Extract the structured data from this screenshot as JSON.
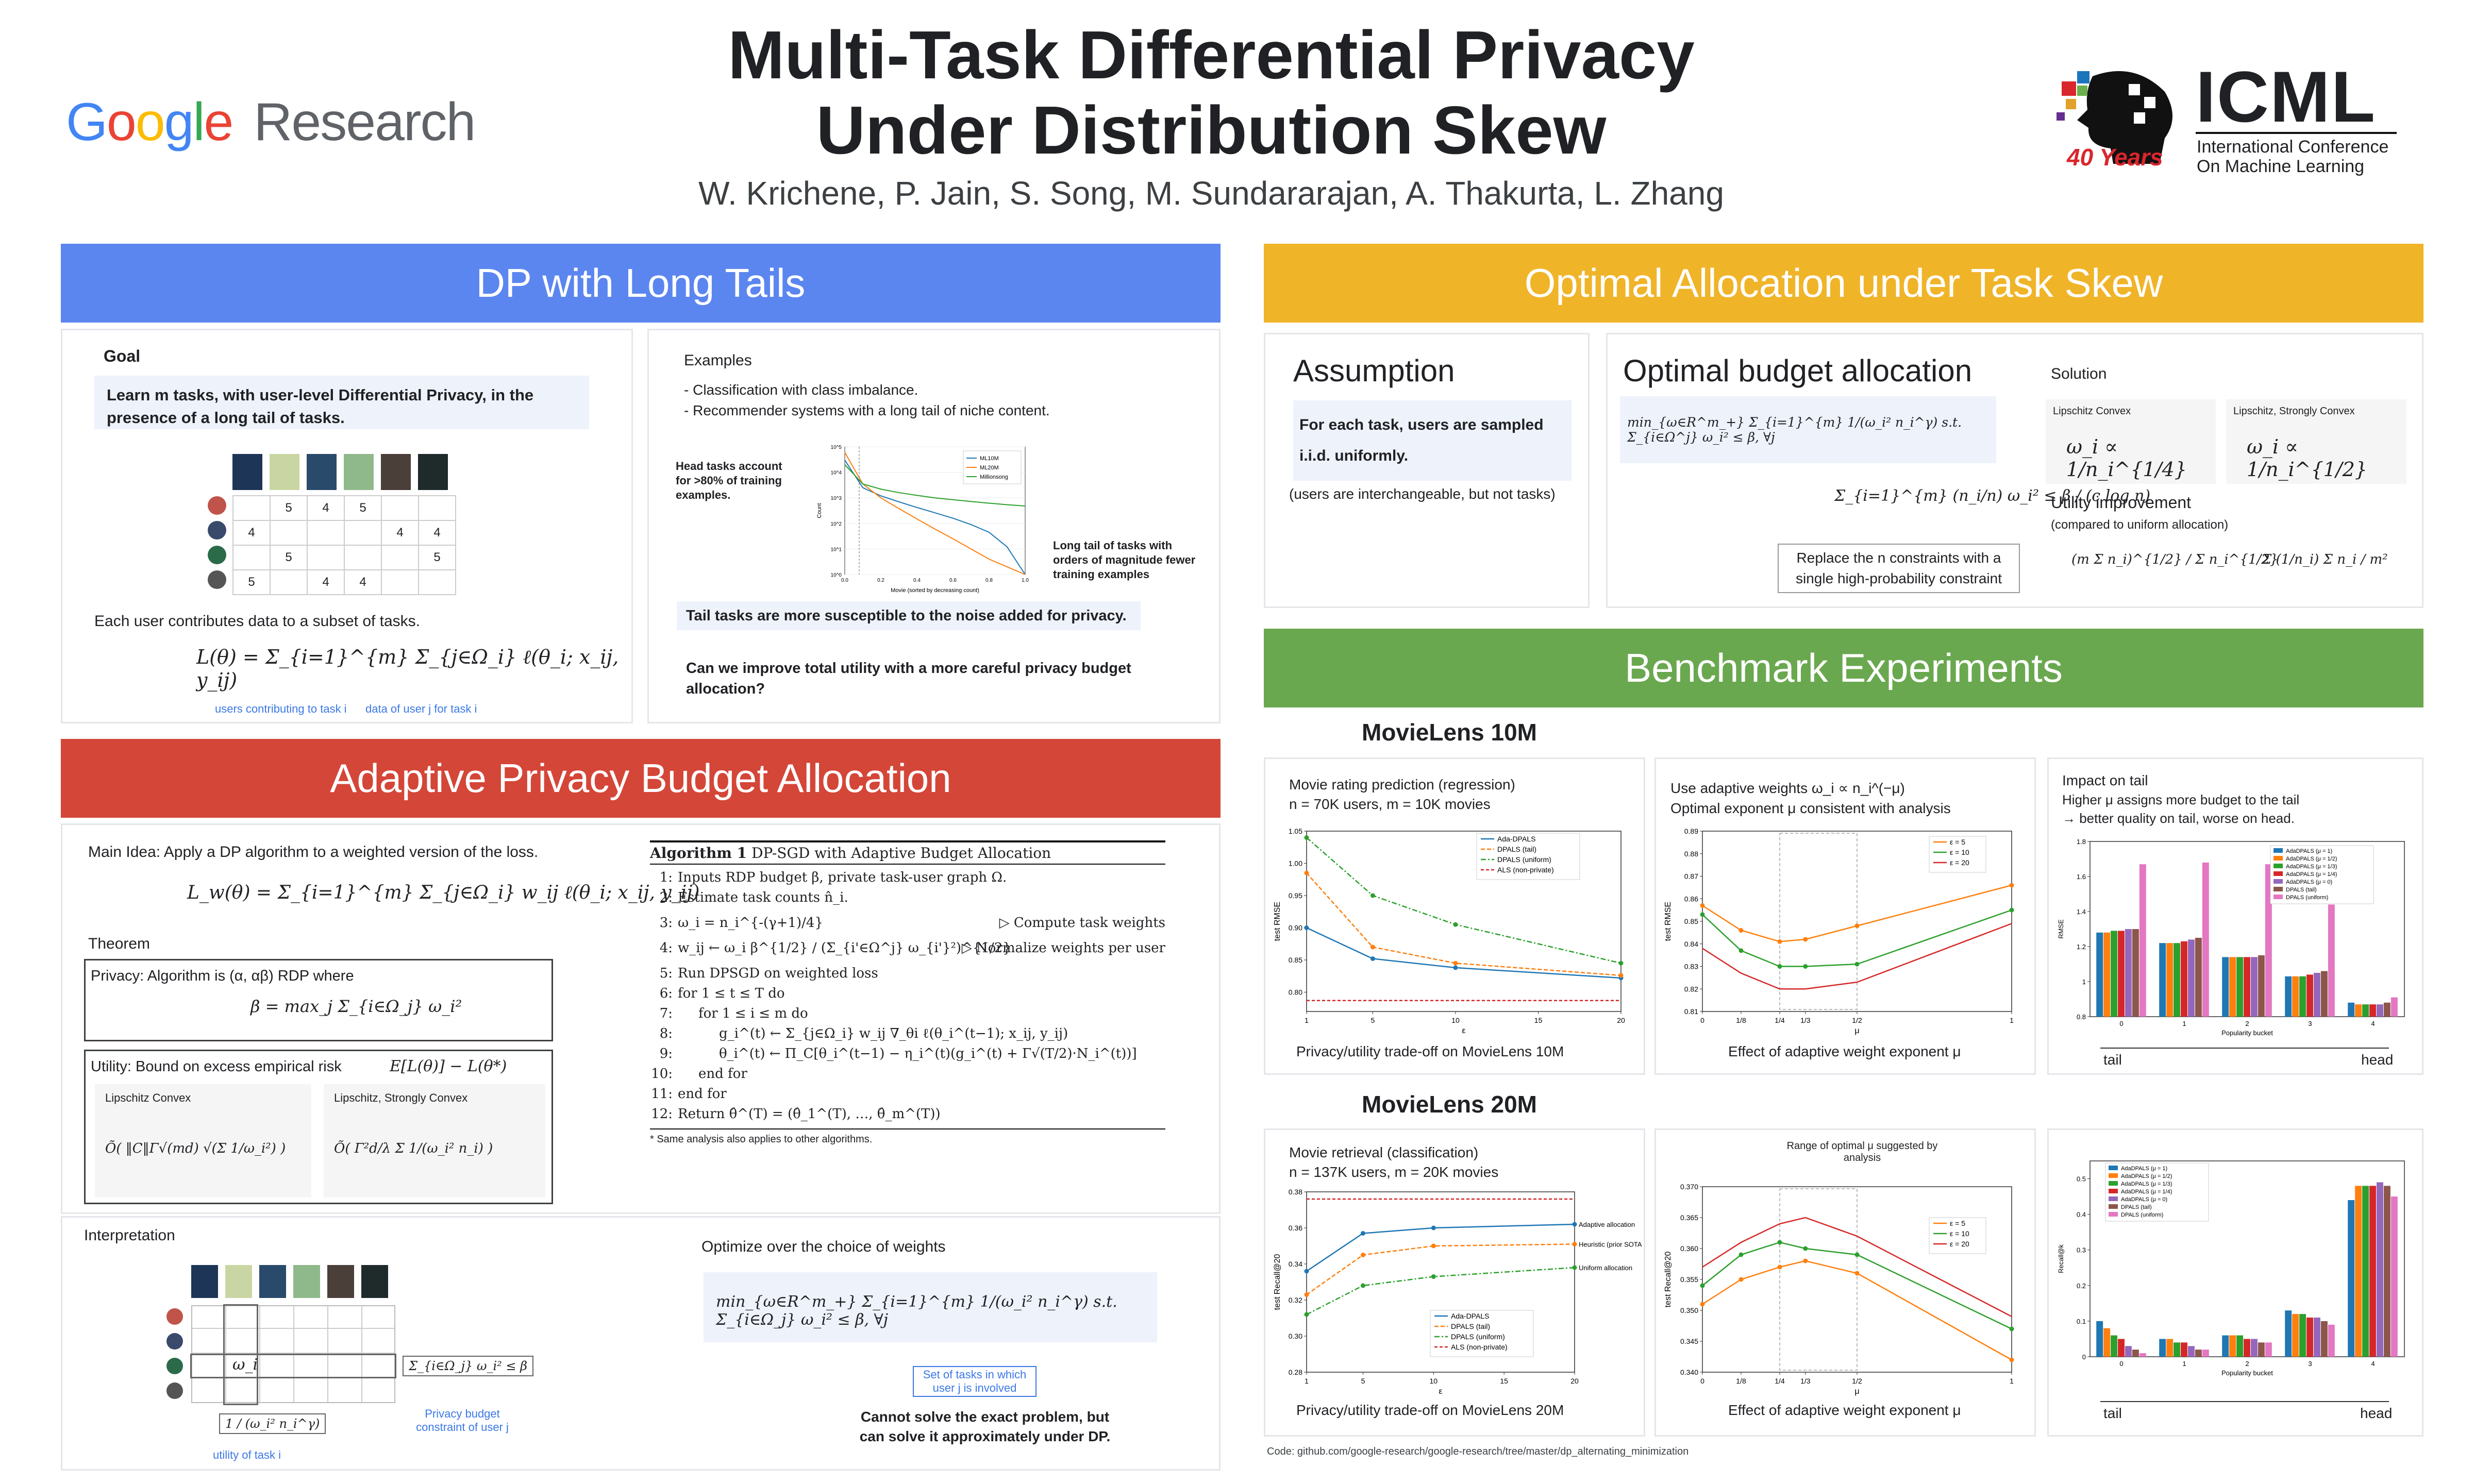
{
  "header": {
    "title_line1": "Multi-Task Differential Privacy",
    "title_line2": "Under Distribution Skew",
    "authors": "W. Krichene, P. Jain, S. Song, M. Sundararajan, A. Thakurta, L. Zhang",
    "left_logo": {
      "google": "Google",
      "research": "Research"
    },
    "right_logo": {
      "icml": "ICML",
      "line1": "International Conference",
      "line2": "On Machine Learning",
      "years": "40 Years"
    }
  },
  "colors": {
    "blue": "#5b86f0",
    "red": "#d44638",
    "yellow": "#f0b429",
    "green": "#6aa84f",
    "accent": "#3b78e7"
  },
  "sections": {
    "dp_long_tails": "DP with Long Tails",
    "adaptive": "Adaptive Privacy Budget Allocation",
    "optimal": "Optimal Allocation under Task Skew",
    "benchmark": "Benchmark Experiments"
  },
  "goal": {
    "heading": "Goal",
    "text_line1": "Learn m tasks, with user-level Differential Privacy, in the",
    "text_line2": "presence of a long tail of tasks.",
    "each_user": "Each user contributes data to a subset of tasks.",
    "formula": "L(θ) = Σ_{i=1}^{m} Σ_{j∈Ω_i} ℓ(θ_i; x_ij, y_ij)",
    "note_users": "users contributing to task i",
    "note_data": "data of user j for task i"
  },
  "matrix": {
    "rows": [
      [
        "",
        "5",
        "4",
        "5",
        "",
        ""
      ],
      [
        "4",
        "",
        "",
        "",
        "4",
        "4"
      ],
      [
        "",
        "5",
        "",
        "",
        "",
        "5"
      ],
      [
        "5",
        "",
        "4",
        "4",
        "",
        ""
      ]
    ]
  },
  "examples": {
    "heading": "Examples",
    "item1": "-  Classification with class imbalance.",
    "item2": "-  Recommender systems with a long tail of niche content.",
    "head_note": "Head tasks account for >80% of training examples.",
    "tail_note": "Long tail of tasks with orders of magnitude fewer training examples",
    "box_text": "Tail tasks are more susceptible to the noise added for privacy.",
    "question": "Can we improve total utility with a more careful privacy budget allocation?",
    "chart_xlabel": "Movie (sorted by decreasing count)",
    "chart_ylabel": "Count",
    "legend": [
      "ML10M",
      "ML20M",
      "Millionsong"
    ]
  },
  "adaptive": {
    "main_idea": "Main Idea: Apply a DP algorithm to a weighted version of the loss.",
    "weighted_loss": "L_w(θ) = Σ_{i=1}^{m} Σ_{j∈Ω_i} w_ij ℓ(θ_i; x_ij, y_ij)",
    "theorem": "Theorem",
    "privacy": "Privacy: Algorithm is (α, αβ) RDP where",
    "privacy_formula": "β = max_j Σ_{i∈Ω_j} ω_i²",
    "utility": "Utility: Bound on excess empirical risk",
    "utility_formula": "E[L(θ)] − L(θ*)",
    "lip_convex": "Lipschitz Convex",
    "lip_strong": "Lipschitz, Strongly Convex",
    "bound1": "Õ( ‖C‖Γ√(md) √(Σ 1/ω_i²) )",
    "bound2": "Õ( Γ²d/λ Σ 1/(ω_i² n_i) )",
    "interpretation": "Interpretation",
    "omega": "ω_i",
    "sum_label": "Σ_{i∈Ω_j} ω_i² ≤ β",
    "budget_note": "Privacy budget constraint of user j",
    "utility_frac": "1 / (ω_i² n_i^γ)",
    "utility_note": "utility of task i",
    "optimize": "Optimize over the choice of weights",
    "opt_formula": "min_{ω∈R^m_+} Σ_{i=1}^{m} 1/(ω_i² n_i^γ)    s.t.  Σ_{i∈Ω_j} ω_i² ≤ β,  ∀j",
    "set_note": "Set of tasks in which user j is involved",
    "cannot": "Cannot solve the exact problem, but can solve it approximately under DP."
  },
  "algorithm": {
    "title": "Algorithm 1",
    "title_rest": "DP-SGD with Adaptive Budget Allocation",
    "lines": [
      {
        "n": "1:",
        "t": "Inputs RDP budget β, private task-user graph Ω."
      },
      {
        "n": "2:",
        "t": "Estimate task counts n̂_i."
      },
      {
        "n": "3:",
        "t": "ω_i = n_i^{-(γ+1)/4}",
        "c": "▷ Compute task weights"
      },
      {
        "n": "4:",
        "t": "w_ij ← ω_i β^{1/2} / (Σ_{i'∈Ω^j} ω_{i'}²)^{1/2}",
        "c": "▷ Normalize weights per user"
      },
      {
        "n": "5:",
        "t": "Run DPSGD on weighted loss"
      },
      {
        "n": "6:",
        "t": "for 1 ≤ t ≤ T do"
      },
      {
        "n": "7:",
        "t": "for 1 ≤ i ≤ m do"
      },
      {
        "n": "8:",
        "t": "g_i^(t) ← Σ_{j∈Ω_i} w_ij ∇_θi ℓ(θ_i^(t−1); x_ij, y_ij)"
      },
      {
        "n": "9:",
        "t": "θ_i^(t) ← Π_C[θ_i^(t−1) − η_i^(t)(g_i^(t) + Γ√(T/2)·N_i^(t))]"
      },
      {
        "n": "10:",
        "t": "end for"
      },
      {
        "n": "11:",
        "t": "end for"
      },
      {
        "n": "12:",
        "t": "Return θ̂^(T) = (θ̂_1^(T), …, θ̂_m^(T))"
      }
    ],
    "footnote": "* Same analysis also applies to other algorithms."
  },
  "assumption": {
    "title": "Assumption",
    "box": "For each task, users are sampled i.i.d. uniformly.",
    "note": "(users are interchangeable, but not tasks)"
  },
  "optimal_budget": {
    "title": "Optimal budget allocation",
    "formula": "min_{ω∈R^m_+} Σ_{i=1}^{m} 1/(ω_i² n_i^γ)   s.t.  Σ_{i∈Ω^j} ω_i² ≤ β, ∀j",
    "constraint": "Σ_{i=1}^{m} (n_i/n) ω_i² ≤ β / (c log n)",
    "replace_note": "Replace the n constraints with a single high-probability constraint",
    "solution": "Solution",
    "sol1_label": "Lipschitz Convex",
    "sol1": "ω_i ∝ 1/n_i^{1/4}",
    "sol2_label": "Lipschitz, Strongly Convex",
    "sol2": "ω_i ∝ 1/n_i^{1/2}",
    "utility_improvement": "Utility improvement",
    "utility_sub": "(compared to uniform allocation)",
    "imp1": "(m Σ n_i)^{1/2} / Σ n_i^{1/2}",
    "imp2": "Σ (1/n_i) Σ n_i / m²"
  },
  "movielens10m": {
    "title": "MovieLens 10M",
    "p1_line1": "Movie rating prediction (regression)",
    "p1_line2": "n = 70K users, m = 10K movies",
    "p1_caption": "Privacy/utility trade-off on MovieLens 10M",
    "p2_line1": "Use adaptive weights  ω_i ∝ n_i^(−μ)",
    "p2_line2": "Optimal exponent  μ  consistent with analysis",
    "p2_caption": "Effect of adaptive weight exponent μ",
    "p3_line1": "Impact on tail",
    "p3_line2": "Higher μ assigns more budget to the tail",
    "p3_line3": "→ better quality on tail, worse on head.",
    "tail": "tail",
    "head": "head"
  },
  "movielens20m": {
    "title": "MovieLens 20M",
    "p1_line1": "Movie retrieval (classification)",
    "p1_line2": "n = 137K users, m = 20K movies",
    "p1_caption": "Privacy/utility trade-off on MovieLens 20M",
    "p2_caption": "Effect of adaptive weight exponent μ",
    "range_note": "Range of optimal μ suggested by analysis",
    "adaptive_note": "Adaptive allocation",
    "heuristic_note": "Heuristic (prior SOTA)",
    "uniform_note": "Uniform allocation",
    "tail": "tail",
    "head": "head"
  },
  "code": "Code: github.com/google-research/google-research/tree/master/dp_alternating_minimization",
  "chart_data": [
    {
      "type": "line",
      "title": "",
      "xlabel": "Movie (sorted by decreasing count)",
      "ylabel": "Count",
      "log_y": true,
      "x": [
        0,
        0.1,
        0.2,
        0.3,
        0.4,
        0.5,
        0.6,
        0.7,
        0.8,
        0.9,
        1.0
      ],
      "series": [
        {
          "name": "ML10M",
          "values": [
            30000,
            2500,
            1200,
            700,
            420,
            260,
            160,
            90,
            45,
            12,
            1
          ]
        },
        {
          "name": "ML20M",
          "values": [
            60000,
            3500,
            1000,
            380,
            150,
            60,
            25,
            10,
            4,
            2,
            1
          ]
        },
        {
          "name": "Millionsong",
          "values": [
            20000,
            3500,
            2200,
            1600,
            1250,
            1000,
            850,
            720,
            620,
            540,
            480
          ]
        }
      ]
    },
    {
      "type": "line",
      "title": "",
      "xlabel": "ε",
      "ylabel": "test RMSE",
      "x": [
        1,
        5,
        10,
        20
      ],
      "ylim": [
        0.77,
        1.05
      ],
      "series": [
        {
          "name": "Ada-DPALS",
          "values": [
            0.9,
            0.852,
            0.838,
            0.822
          ]
        },
        {
          "name": "DPALS (tail)",
          "values": [
            0.985,
            0.87,
            0.845,
            0.826
          ]
        },
        {
          "name": "DPALS (uniform)",
          "values": [
            1.04,
            0.95,
            0.905,
            0.845
          ]
        },
        {
          "name": "ALS (non-private)",
          "values": [
            0.787,
            0.787,
            0.787,
            0.787
          ]
        }
      ]
    },
    {
      "type": "line",
      "title": "",
      "xlabel": "μ",
      "ylabel": "test RMSE",
      "x": [
        0,
        0.125,
        0.25,
        0.333,
        0.5,
        1
      ],
      "x_ticks": [
        "0",
        "1/8",
        "1/4",
        "1/3",
        "1/2",
        "1"
      ],
      "ylim": [
        0.81,
        0.89
      ],
      "series": [
        {
          "name": "ε = 5",
          "values": [
            0.857,
            0.846,
            0.841,
            0.842,
            0.848,
            0.866
          ]
        },
        {
          "name": "ε = 10",
          "values": [
            0.853,
            0.837,
            0.83,
            0.83,
            0.831,
            0.855
          ]
        },
        {
          "name": "ε = 20",
          "values": [
            0.838,
            0.827,
            0.82,
            0.82,
            0.823,
            0.849
          ]
        }
      ]
    },
    {
      "type": "bar",
      "title": "",
      "xlabel": "Popularity bucket",
      "ylabel": "RMSE",
      "categories": [
        "0",
        "1",
        "2",
        "3",
        "4"
      ],
      "series": [
        {
          "name": "AdaDPALS (μ = 1)",
          "values": [
            1.28,
            1.22,
            1.14,
            1.03,
            0.88
          ]
        },
        {
          "name": "AdaDPALS (μ = 1/2)",
          "values": [
            1.28,
            1.22,
            1.14,
            1.03,
            0.87
          ]
        },
        {
          "name": "AdaDPALS (μ = 1/3)",
          "values": [
            1.29,
            1.22,
            1.14,
            1.03,
            0.87
          ]
        },
        {
          "name": "AdaDPALS (μ = 1/4)",
          "values": [
            1.29,
            1.23,
            1.14,
            1.04,
            0.87
          ]
        },
        {
          "name": "AdaDPALS (μ = 0)",
          "values": [
            1.3,
            1.24,
            1.14,
            1.05,
            0.87
          ]
        },
        {
          "name": "DPALS (tail)",
          "values": [
            1.3,
            1.25,
            1.15,
            1.06,
            0.88
          ]
        },
        {
          "name": "DPALS (uniform)",
          "values": [
            1.67,
            1.68,
            1.67,
            1.44,
            0.91
          ]
        }
      ]
    },
    {
      "type": "line",
      "title": "",
      "xlabel": "ε",
      "ylabel": "test Recall@20",
      "x": [
        1,
        5,
        10,
        20
      ],
      "ylim": [
        0.28,
        0.38
      ],
      "series": [
        {
          "name": "Ada-DPALS",
          "values": [
            0.336,
            0.357,
            0.36,
            0.362
          ]
        },
        {
          "name": "DPALS (tail)",
          "values": [
            0.323,
            0.345,
            0.35,
            0.351
          ]
        },
        {
          "name": "DPALS (uniform)",
          "values": [
            0.312,
            0.328,
            0.333,
            0.338
          ]
        },
        {
          "name": "ALS (non-private)",
          "values": [
            0.376,
            0.376,
            0.376,
            0.376
          ]
        }
      ]
    },
    {
      "type": "line",
      "title": "",
      "xlabel": "μ",
      "ylabel": "test Recall@20",
      "x": [
        0,
        0.125,
        0.25,
        0.333,
        0.5,
        1
      ],
      "x_ticks": [
        "0",
        "1/8",
        "1/4",
        "1/3",
        "1/2",
        "1"
      ],
      "ylim": [
        0.34,
        0.37
      ],
      "series": [
        {
          "name": "ε = 5",
          "values": [
            0.351,
            0.355,
            0.357,
            0.358,
            0.356,
            0.342
          ]
        },
        {
          "name": "ε = 10",
          "values": [
            0.354,
            0.359,
            0.361,
            0.36,
            0.359,
            0.347
          ]
        },
        {
          "name": "ε = 20",
          "values": [
            0.357,
            0.361,
            0.364,
            0.365,
            0.362,
            0.349
          ]
        }
      ]
    },
    {
      "type": "bar",
      "title": "",
      "xlabel": "Popularity bucket",
      "ylabel": "Recall@k",
      "categories": [
        "0",
        "1",
        "2",
        "3",
        "4"
      ],
      "series": [
        {
          "name": "AdaDPALS (μ = 1)",
          "values": [
            0.1,
            0.05,
            0.06,
            0.13,
            0.44
          ]
        },
        {
          "name": "AdaDPALS (μ = 1/2)",
          "values": [
            0.08,
            0.05,
            0.06,
            0.12,
            0.48
          ]
        },
        {
          "name": "AdaDPALS (μ = 1/3)",
          "values": [
            0.06,
            0.04,
            0.06,
            0.12,
            0.48
          ]
        },
        {
          "name": "AdaDPALS (μ = 1/4)",
          "values": [
            0.05,
            0.04,
            0.05,
            0.11,
            0.48
          ]
        },
        {
          "name": "AdaDPALS (μ = 0)",
          "values": [
            0.03,
            0.03,
            0.05,
            0.11,
            0.49
          ]
        },
        {
          "name": "DPALS (tail)",
          "values": [
            0.02,
            0.02,
            0.04,
            0.1,
            0.48
          ]
        },
        {
          "name": "DPALS (uniform)",
          "values": [
            0.01,
            0.02,
            0.04,
            0.09,
            0.45
          ]
        }
      ]
    }
  ]
}
